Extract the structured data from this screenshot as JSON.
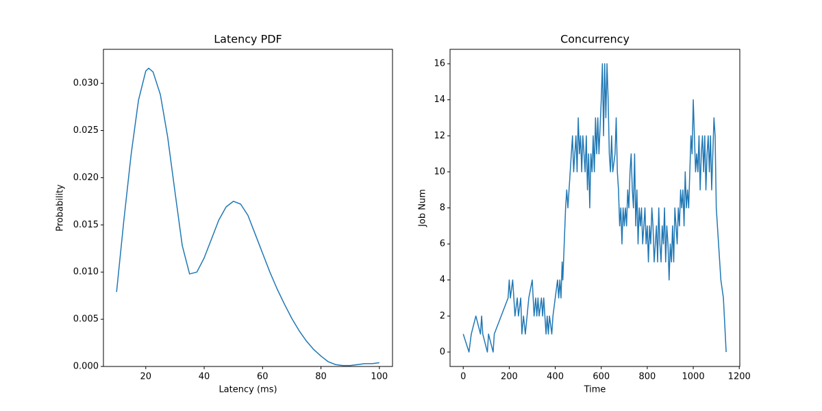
{
  "chart_data": [
    {
      "type": "line",
      "title": "Latency PDF",
      "xlabel": "Latency (ms)",
      "ylabel": "Probability",
      "color": "#1f77b4",
      "x": [
        10,
        12.5,
        15,
        17.5,
        20,
        21,
        22.5,
        25,
        27.5,
        30,
        32.5,
        35,
        37.5,
        40,
        42.5,
        45,
        47.5,
        50,
        52.5,
        55,
        57.5,
        60,
        62.5,
        65,
        67.5,
        70,
        72.5,
        75,
        77.5,
        80,
        82.5,
        85,
        87.5,
        90,
        92.5,
        95,
        97.5,
        100
      ],
      "values": [
        0.0079,
        0.0155,
        0.0225,
        0.0282,
        0.0313,
        0.0316,
        0.0312,
        0.0288,
        0.0243,
        0.0185,
        0.0128,
        0.0098,
        0.01,
        0.0115,
        0.0135,
        0.0155,
        0.0169,
        0.0175,
        0.0172,
        0.016,
        0.014,
        0.012,
        0.01,
        0.0082,
        0.0066,
        0.0051,
        0.0038,
        0.0027,
        0.0018,
        0.0011,
        0.0005,
        0.0002,
        0.0001,
        0.0001,
        0.0002,
        0.0003,
        0.0003,
        0.0004
      ],
      "xlim": [
        5.5,
        104.5
      ],
      "ylim": [
        0,
        0.0336
      ],
      "xticks": [
        20,
        40,
        60,
        80,
        100
      ],
      "yticks": [
        {
          "value": 0,
          "label": "0.000"
        },
        {
          "value": 0.005,
          "label": "0.005"
        },
        {
          "value": 0.01,
          "label": "0.010"
        },
        {
          "value": 0.015,
          "label": "0.015"
        },
        {
          "value": 0.02,
          "label": "0.020"
        },
        {
          "value": 0.025,
          "label": "0.025"
        },
        {
          "value": 0.03,
          "label": "0.030"
        }
      ]
    },
    {
      "type": "line",
      "title": "Concurrency",
      "xlabel": "Time",
      "ylabel": "Job Num",
      "color": "#1f77b4",
      "x": [
        0,
        25,
        35,
        55,
        75,
        80,
        85,
        105,
        110,
        130,
        135,
        195,
        200,
        205,
        215,
        225,
        235,
        240,
        250,
        255,
        262,
        270,
        285,
        300,
        308,
        315,
        320,
        325,
        330,
        340,
        345,
        350,
        360,
        365,
        370,
        375,
        385,
        390,
        400,
        410,
        415,
        420,
        425,
        430,
        433,
        445,
        450,
        455,
        460,
        465,
        470,
        475,
        480,
        485,
        490,
        495,
        500,
        505,
        510,
        515,
        520,
        525,
        530,
        535,
        540,
        545,
        550,
        555,
        560,
        565,
        570,
        575,
        580,
        585,
        590,
        600,
        605,
        610,
        615,
        620,
        625,
        630,
        635,
        640,
        645,
        650,
        660,
        665,
        670,
        675,
        680,
        685,
        690,
        695,
        700,
        705,
        710,
        715,
        720,
        725,
        730,
        735,
        740,
        745,
        750,
        755,
        760,
        765,
        770,
        775,
        780,
        785,
        790,
        795,
        800,
        805,
        810,
        815,
        820,
        825,
        830,
        835,
        840,
        845,
        850,
        855,
        860,
        865,
        870,
        875,
        880,
        885,
        890,
        895,
        900,
        905,
        910,
        915,
        920,
        925,
        930,
        935,
        940,
        945,
        950,
        955,
        960,
        965,
        970,
        975,
        980,
        985,
        990,
        995,
        1000,
        1005,
        1010,
        1015,
        1020,
        1025,
        1030,
        1035,
        1040,
        1045,
        1050,
        1055,
        1060,
        1065,
        1070,
        1075,
        1080,
        1085,
        1090,
        1095,
        1100,
        1110,
        1115,
        1120,
        1131,
        1143
      ],
      "values": [
        1,
        0,
        1,
        2,
        1,
        2,
        1,
        0,
        1,
        0,
        1,
        3,
        4,
        3,
        4,
        2,
        3,
        2,
        3,
        1,
        2,
        1,
        3,
        4,
        2,
        3,
        2,
        3,
        2,
        3,
        2,
        3,
        1,
        2,
        1,
        2,
        1,
        2,
        3,
        4,
        3,
        4,
        3,
        5,
        4,
        8,
        9,
        8,
        9,
        10,
        11,
        12,
        10,
        11,
        12,
        10,
        13,
        11,
        12,
        10,
        12,
        11,
        10,
        12,
        9,
        11,
        8,
        11,
        10,
        12,
        10,
        13,
        11,
        13,
        11,
        14,
        16,
        12,
        16,
        13,
        16,
        14,
        11,
        10,
        12,
        10,
        11,
        13,
        10,
        9,
        7,
        8,
        6,
        8,
        7,
        8,
        7,
        9,
        8,
        10,
        11,
        9,
        8,
        11,
        7,
        9,
        6,
        8,
        7,
        8,
        6,
        7,
        8,
        6,
        7,
        5,
        7,
        6,
        8,
        7,
        5,
        6,
        7,
        5,
        8,
        6,
        5,
        7,
        6,
        8,
        5,
        7,
        6,
        4,
        6,
        5,
        7,
        5,
        8,
        7,
        6,
        8,
        7,
        9,
        8,
        9,
        7,
        10,
        8,
        9,
        8,
        10,
        12,
        11,
        14,
        12,
        10,
        11,
        10,
        12,
        9,
        11,
        12,
        10,
        12,
        9,
        11,
        12,
        10,
        12,
        9,
        11,
        13,
        12,
        8,
        6,
        5,
        4,
        3,
        0
      ],
      "xlim": [
        -57.3,
        1202.3
      ],
      "ylim": [
        -0.8,
        16.8
      ],
      "xticks": [
        0,
        200,
        400,
        600,
        800,
        1000,
        1200
      ],
      "yticks": [
        0,
        2,
        4,
        6,
        8,
        10,
        12,
        14,
        16
      ]
    }
  ]
}
